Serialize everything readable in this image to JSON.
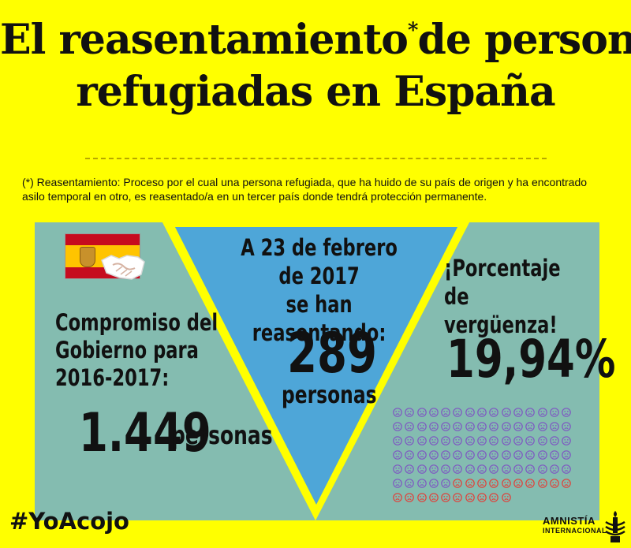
{
  "title": {
    "line1_part1": "El reasentamiento",
    "line1_asterisk": "*",
    "line1_part2": "de personas",
    "line2": "refugiadas en España"
  },
  "note": "(*) Reasentamiento: Proceso por el cual una persona refugiada, que ha huido de su país de origen y ha encontrado asilo temporal en otro, es reasentado/a en un tercer país donde tendrá protección permanente.",
  "left_panel": {
    "heading_line1": "Compromiso del",
    "heading_line2": "Gobierno para",
    "heading_line3": "2016-2017:",
    "number": "1.449",
    "unit": "personas"
  },
  "center_panel": {
    "heading_line1": "A 23 de febrero de 2017",
    "heading_line2": "se han reasentando:",
    "number": "289",
    "unit": "personas"
  },
  "right_panel": {
    "heading_line1": "¡Porcentaje de",
    "heading_line2": "vergüenza!",
    "percentage": "19,94%",
    "faces_grid": {
      "columns": 15,
      "total": 100,
      "highlighted": 20,
      "highlight_color": "#e0403a",
      "base_color": "#7e57c2"
    }
  },
  "footer": {
    "hashtag": "#YoAcojo",
    "logo_line1": "AMNISTÍA",
    "logo_line2": "INTERNACIONAL"
  },
  "colors": {
    "background": "#ffff00",
    "side_panels": "#84bcb0",
    "center_panel": "#4ea6d8",
    "text": "#111111"
  },
  "icons": [
    "spain-flag-icon",
    "handshake-icon",
    "sad-face-icon",
    "amnesty-candle-icon"
  ]
}
